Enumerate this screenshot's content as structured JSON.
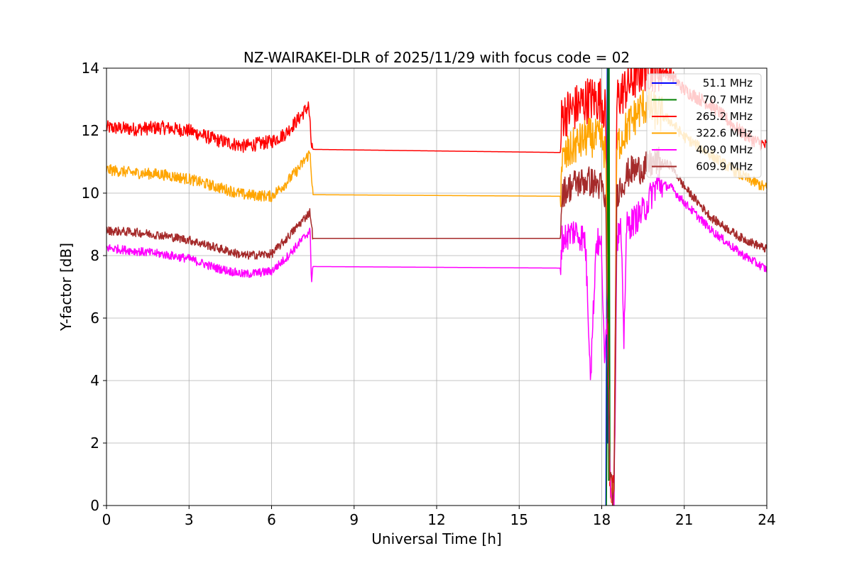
{
  "chart_data": {
    "type": "line",
    "title": "NZ-WAIRAKEI-DLR of 2025/11/29 with focus code = 02",
    "xlabel": "Universal Time [h]",
    "ylabel": "Y-factor [dB]",
    "xlim": [
      0,
      24
    ],
    "ylim": [
      0,
      14
    ],
    "xticks": [
      0,
      3,
      6,
      9,
      12,
      15,
      18,
      21,
      24
    ],
    "yticks": [
      0,
      2,
      4,
      6,
      8,
      10,
      12,
      14
    ],
    "grid": true,
    "legend_position": "top-right",
    "series": [
      {
        "name": "51.1 MHz",
        "color": "#0000ff",
        "points": [
          [
            18.15,
            0
          ],
          [
            18.18,
            6.5
          ],
          [
            18.2,
            14
          ],
          [
            18.22,
            2
          ],
          [
            18.24,
            14
          ]
        ]
      },
      {
        "name": "70.7 MHz",
        "color": "#008000",
        "points": [
          [
            18.17,
            0
          ],
          [
            18.2,
            4
          ],
          [
            18.22,
            14
          ],
          [
            18.25,
            0.8
          ],
          [
            18.27,
            14
          ],
          [
            18.3,
            1
          ]
        ]
      },
      {
        "name": "265.2 MHz",
        "color": "#ff0000",
        "noise": 0.22,
        "points": [
          [
            0,
            12.1
          ],
          [
            1,
            12.05
          ],
          [
            2,
            12.1
          ],
          [
            3,
            12.0
          ],
          [
            4,
            11.7
          ],
          [
            5,
            11.5
          ],
          [
            6,
            11.65
          ],
          [
            6.5,
            11.9
          ],
          [
            7,
            12.4
          ],
          [
            7.35,
            12.8
          ],
          [
            7.45,
            11.5
          ],
          [
            7.5,
            11.4
          ],
          [
            16.5,
            11.3
          ],
          [
            16.55,
            12.5
          ],
          [
            17,
            12.7
          ],
          [
            17.5,
            13.0
          ],
          [
            18,
            13.0
          ],
          [
            18.15,
            12.5
          ],
          [
            18.2,
            6.5
          ],
          [
            18.3,
            0.8
          ],
          [
            18.45,
            0.1
          ],
          [
            18.55,
            13.0
          ],
          [
            19,
            13.5
          ],
          [
            19.5,
            14.0
          ],
          [
            20,
            14.0
          ],
          [
            20.5,
            13.8
          ],
          [
            21,
            13.3
          ],
          [
            22,
            12.8
          ],
          [
            23,
            12.0
          ],
          [
            23.5,
            11.7
          ],
          [
            24,
            11.5
          ]
        ]
      },
      {
        "name": "322.6 MHz",
        "color": "#ffa500",
        "noise": 0.18,
        "points": [
          [
            0,
            10.75
          ],
          [
            1,
            10.65
          ],
          [
            2,
            10.6
          ],
          [
            3,
            10.45
          ],
          [
            4,
            10.2
          ],
          [
            5,
            9.95
          ],
          [
            6,
            9.9
          ],
          [
            6.5,
            10.3
          ],
          [
            7,
            10.8
          ],
          [
            7.4,
            11.3
          ],
          [
            7.5,
            9.95
          ],
          [
            16.5,
            9.9
          ],
          [
            16.55,
            11.0
          ],
          [
            17,
            11.5
          ],
          [
            17.5,
            11.8
          ],
          [
            18,
            11.7
          ],
          [
            18.15,
            11.2
          ],
          [
            18.2,
            6.5
          ],
          [
            18.3,
            0.8
          ],
          [
            18.45,
            0.1
          ],
          [
            18.55,
            11.5
          ],
          [
            19,
            12.2
          ],
          [
            19.5,
            12.8
          ],
          [
            20,
            12.6
          ],
          [
            20.5,
            12.3
          ],
          [
            21,
            11.8
          ],
          [
            22,
            11.2
          ],
          [
            23,
            10.6
          ],
          [
            24,
            10.15
          ]
        ]
      },
      {
        "name": "409.0 MHz",
        "color": "#ff00ff",
        "noise": 0.14,
        "points": [
          [
            0,
            8.25
          ],
          [
            1,
            8.15
          ],
          [
            2,
            8.05
          ],
          [
            3,
            7.9
          ],
          [
            4,
            7.6
          ],
          [
            5,
            7.4
          ],
          [
            6,
            7.5
          ],
          [
            6.5,
            7.9
          ],
          [
            7,
            8.4
          ],
          [
            7.4,
            8.8
          ],
          [
            7.45,
            7.2
          ],
          [
            7.5,
            7.65
          ],
          [
            16.5,
            7.6
          ],
          [
            16.55,
            8.5
          ],
          [
            17,
            8.8
          ],
          [
            17.4,
            8.5
          ],
          [
            17.6,
            4.2
          ],
          [
            17.8,
            8.5
          ],
          [
            18.0,
            8.2
          ],
          [
            18.1,
            4.3
          ],
          [
            18.2,
            6.5
          ],
          [
            18.3,
            0.8
          ],
          [
            18.45,
            0.1
          ],
          [
            18.55,
            8.6
          ],
          [
            18.7,
            8.8
          ],
          [
            18.8,
            5.1
          ],
          [
            18.9,
            8.9
          ],
          [
            19.5,
            9.4
          ],
          [
            20,
            10.3
          ],
          [
            20.5,
            10.2
          ],
          [
            21,
            9.7
          ],
          [
            22,
            8.8
          ],
          [
            23,
            8.1
          ],
          [
            24,
            7.55
          ]
        ]
      },
      {
        "name": "609.9 MHz",
        "color": "#a52a2a",
        "noise": 0.14,
        "points": [
          [
            0,
            8.8
          ],
          [
            1,
            8.75
          ],
          [
            2,
            8.65
          ],
          [
            3,
            8.5
          ],
          [
            4,
            8.25
          ],
          [
            5,
            8.0
          ],
          [
            6,
            8.05
          ],
          [
            6.5,
            8.5
          ],
          [
            7,
            9.0
          ],
          [
            7.4,
            9.4
          ],
          [
            7.5,
            8.55
          ],
          [
            16.5,
            8.55
          ],
          [
            16.55,
            10.0
          ],
          [
            17,
            10.3
          ],
          [
            17.5,
            10.4
          ],
          [
            18,
            10.2
          ],
          [
            18.15,
            9.5
          ],
          [
            18.2,
            6.5
          ],
          [
            18.3,
            0.8
          ],
          [
            18.45,
            0.1
          ],
          [
            18.55,
            10.0
          ],
          [
            19,
            10.7
          ],
          [
            19.5,
            10.8
          ],
          [
            20,
            11.0
          ],
          [
            20.5,
            10.9
          ],
          [
            21,
            10.2
          ],
          [
            22,
            9.2
          ],
          [
            23,
            8.6
          ],
          [
            24,
            8.2
          ]
        ]
      }
    ]
  }
}
